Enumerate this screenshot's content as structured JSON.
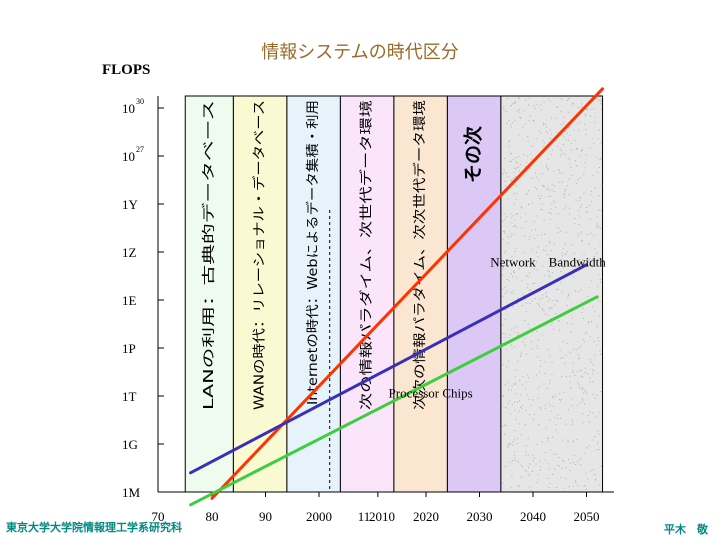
{
  "slide": {
    "title": "情報システムの時代区分",
    "footer_left": "東京大学大学院情報理工学系研究科",
    "footer_right": "平木　敬",
    "accent_title": "#9a6a2a",
    "accent_footer": "#008a80"
  },
  "chart_data": {
    "type": "line",
    "title": "情報システムの時代区分",
    "ylabel": "FLOPS",
    "xlabel": "",
    "y_scale": "log10",
    "xlim": [
      1975,
      2055
    ],
    "ylim_exp": [
      6,
      31
    ],
    "x_ticks": [
      {
        "label": "70",
        "year": 1970
      },
      {
        "label": "80",
        "year": 1980
      },
      {
        "label": "90",
        "year": 1990
      },
      {
        "label": "2000",
        "year": 2000
      },
      {
        "label": "11",
        "year": 2009
      },
      {
        "label": "2010",
        "year": 2011
      },
      {
        "label": "2020",
        "year": 2020
      },
      {
        "label": "2030",
        "year": 2030
      },
      {
        "label": "2040",
        "year": 2040
      },
      {
        "label": "2050",
        "year": 2050
      }
    ],
    "y_ticks": [
      {
        "base": "1M",
        "exp": 6
      },
      {
        "base": "1G",
        "exp": 9
      },
      {
        "base": "1T",
        "exp": 12
      },
      {
        "base": "1P",
        "exp": 15
      },
      {
        "base": "1E",
        "exp": 18
      },
      {
        "base": "1Z",
        "exp": 21
      },
      {
        "base": "1Y",
        "exp": 24
      },
      {
        "base": "10",
        "sup": "27",
        "exp": 27
      },
      {
        "base": "10",
        "sup": "30",
        "exp": 30
      }
    ],
    "eras": [
      {
        "label": "LANの利用：古典的データベース",
        "start": 1975,
        "end": 1984,
        "color": "#eefbee",
        "bold": false
      },
      {
        "label": "WANの時代：リレーショナル・データベース",
        "start": 1984,
        "end": 1994,
        "color": "#fafad2",
        "bold": false
      },
      {
        "label": "Internetの時代：Webによるデータ集積・利用",
        "start": 1994,
        "end": 2004,
        "color": "#e6f3fb",
        "bold": false
      },
      {
        "label": "次の情報パラダイム、次世代データ環境",
        "start": 2004,
        "end": 2014,
        "color": "#fbe5fb",
        "bold": false
      },
      {
        "label": "次次の情報パラダイム、次次世代データ環境",
        "start": 2014,
        "end": 2024,
        "color": "#fbe6d2",
        "bold": false
      },
      {
        "label": "その次",
        "start": 2024,
        "end": 2034,
        "color": "#dcc8f5",
        "bold": true
      },
      {
        "label": "",
        "start": 2034,
        "end": 2053,
        "color": "#e6e6e6",
        "bold": false
      }
    ],
    "dashed_marker_year": 2002,
    "series": [
      {
        "name": "",
        "color": "#ff3300",
        "points": [
          [
            1980,
            5.6
          ],
          [
            2053,
            31.2
          ]
        ]
      },
      {
        "name": "Network　Bandwidth",
        "color": "#3a30b8",
        "points": [
          [
            1976,
            7.2
          ],
          [
            2050,
            20.2
          ]
        ]
      },
      {
        "name": "Processor Chips",
        "color": "#40cc40",
        "points": [
          [
            1976,
            5.2
          ],
          [
            2052,
            18.2
          ]
        ]
      }
    ],
    "annotations": [
      {
        "text": "Network　Bandwidth",
        "year": 2032,
        "exp": 20.1
      },
      {
        "text": "Processor Chips",
        "year": 2013,
        "exp": 11.9
      }
    ],
    "grid": false
  }
}
